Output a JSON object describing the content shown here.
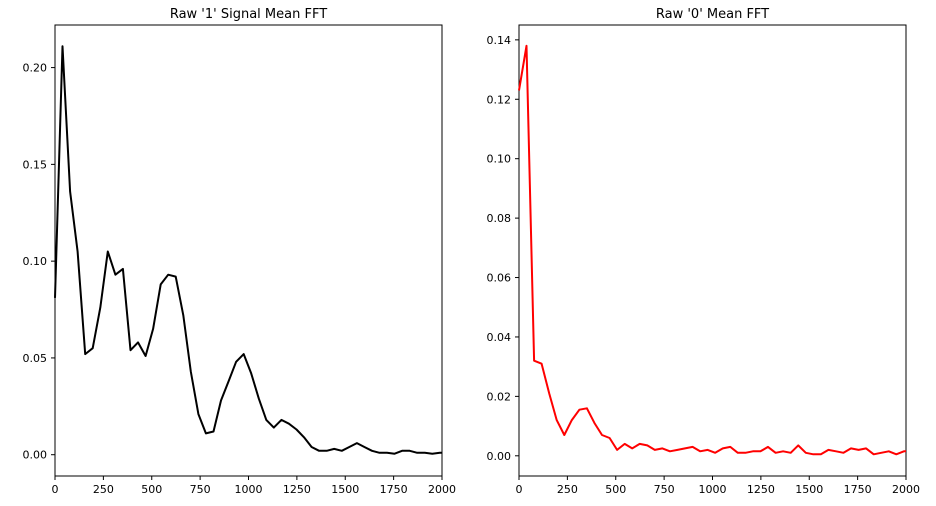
{
  "chart_data": [
    {
      "type": "line",
      "title": "Raw '1' Signal Mean FFT",
      "xlabel": "",
      "ylabel": "",
      "xlim": [
        0,
        2000
      ],
      "ylim": [
        -0.011,
        0.222
      ],
      "xticks": [
        0,
        250,
        500,
        750,
        1000,
        1250,
        1500,
        1750,
        2000
      ],
      "xtick_labels": [
        "0",
        "250",
        "500",
        "750",
        "1000",
        "1250",
        "1500",
        "1750",
        "2000"
      ],
      "yticks": [
        0.0,
        0.05,
        0.1,
        0.15,
        0.2
      ],
      "ytick_labels": [
        "0.00",
        "0.05",
        "0.10",
        "0.15",
        "0.20"
      ],
      "grid": false,
      "color": "#000000",
      "series": [
        {
          "x": [
            0,
            39,
            78,
            117,
            156,
            195,
            234,
            273,
            312,
            351,
            390,
            429,
            468,
            507,
            546,
            585,
            624,
            663,
            702,
            741,
            780,
            819,
            858,
            897,
            936,
            975,
            1014,
            1053,
            1092,
            1131,
            1170,
            1209,
            1248,
            1287,
            1326,
            1365,
            1404,
            1443,
            1482,
            1521,
            1560,
            1599,
            1638,
            1677,
            1716,
            1755,
            1794,
            1833,
            1872,
            1911,
            1950,
            1989,
            2000
          ],
          "values": [
            0.081,
            0.211,
            0.136,
            0.105,
            0.052,
            0.055,
            0.076,
            0.105,
            0.093,
            0.096,
            0.054,
            0.058,
            0.051,
            0.065,
            0.088,
            0.093,
            0.092,
            0.072,
            0.043,
            0.021,
            0.011,
            0.012,
            0.028,
            0.038,
            0.048,
            0.052,
            0.042,
            0.029,
            0.018,
            0.014,
            0.018,
            0.016,
            0.013,
            0.009,
            0.004,
            0.002,
            0.002,
            0.003,
            0.002,
            0.004,
            0.006,
            0.004,
            0.002,
            0.001,
            0.001,
            0.0005,
            0.002,
            0.002,
            0.001,
            0.001,
            0.0005,
            0.001,
            0.001
          ]
        }
      ]
    },
    {
      "type": "line",
      "title": "Raw '0' Mean FFT",
      "xlabel": "",
      "ylabel": "",
      "xlim": [
        0,
        2000
      ],
      "ylim": [
        -0.0068,
        0.145
      ],
      "xticks": [
        0,
        250,
        500,
        750,
        1000,
        1250,
        1500,
        1750,
        2000
      ],
      "xtick_labels": [
        "0",
        "250",
        "500",
        "750",
        "1000",
        "1250",
        "1500",
        "1750",
        "2000"
      ],
      "yticks": [
        0.0,
        0.02,
        0.04,
        0.06,
        0.08,
        0.1,
        0.12,
        0.14
      ],
      "ytick_labels": [
        "0.00",
        "0.02",
        "0.04",
        "0.06",
        "0.08",
        "0.10",
        "0.12",
        "0.14"
      ],
      "grid": false,
      "color": "#ff0000",
      "series": [
        {
          "x": [
            0,
            39,
            78,
            117,
            156,
            195,
            234,
            273,
            312,
            351,
            390,
            429,
            468,
            507,
            546,
            585,
            624,
            663,
            702,
            741,
            780,
            819,
            858,
            897,
            936,
            975,
            1014,
            1053,
            1092,
            1131,
            1170,
            1209,
            1248,
            1287,
            1326,
            1365,
            1404,
            1443,
            1482,
            1521,
            1560,
            1599,
            1638,
            1677,
            1716,
            1755,
            1794,
            1833,
            1872,
            1911,
            1950,
            1989,
            2000
          ],
          "values": [
            0.123,
            0.138,
            0.032,
            0.031,
            0.021,
            0.012,
            0.007,
            0.012,
            0.0155,
            0.016,
            0.011,
            0.007,
            0.006,
            0.002,
            0.004,
            0.0025,
            0.004,
            0.0035,
            0.002,
            0.0025,
            0.0015,
            0.002,
            0.0025,
            0.003,
            0.0015,
            0.002,
            0.001,
            0.0025,
            0.003,
            0.001,
            0.001,
            0.0015,
            0.0015,
            0.003,
            0.001,
            0.0015,
            0.001,
            0.0035,
            0.001,
            0.0005,
            0.0005,
            0.002,
            0.0015,
            0.001,
            0.0025,
            0.002,
            0.0025,
            0.0005,
            0.001,
            0.0015,
            0.0005,
            0.0015,
            0.0015
          ]
        }
      ]
    }
  ]
}
